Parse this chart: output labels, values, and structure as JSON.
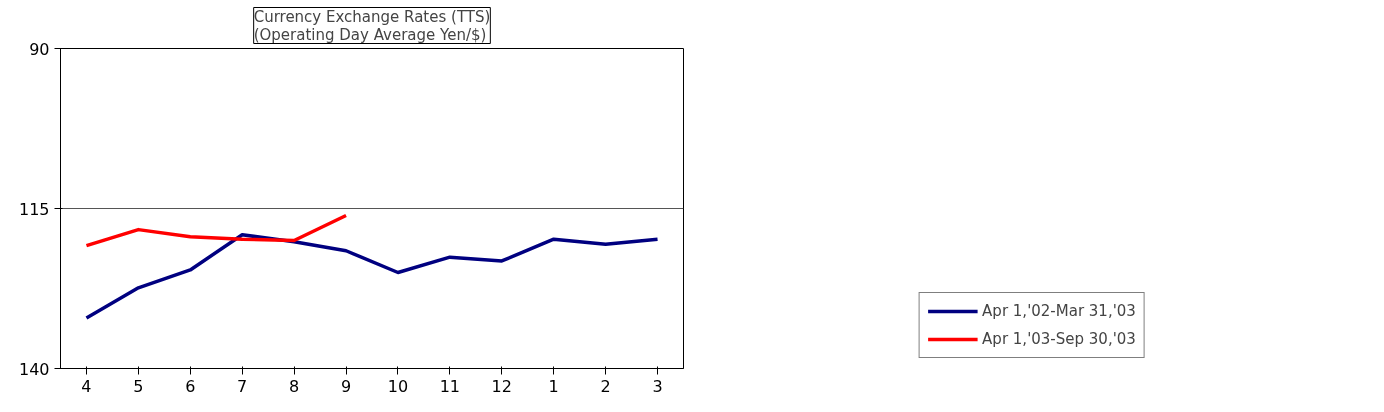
{
  "chart_data": {
    "type": "line",
    "title": "Currency Exchange Rates (TTS)\n(Operating Day Average Yen/$)",
    "categories": [
      "4",
      "5",
      "6",
      "7",
      "8",
      "9",
      "10",
      "11",
      "12",
      "1",
      "2",
      "3"
    ],
    "series": [
      {
        "name": "Apr 1,'02-Mar 31,'03",
        "color": "#000080",
        "values": [
          132.1,
          127.4,
          124.6,
          119.1,
          120.2,
          121.6,
          125.0,
          122.6,
          123.2,
          119.8,
          120.6,
          119.8
        ]
      },
      {
        "name": "Apr 1,'03-Sep 30,'03",
        "color": "#ff0000",
        "values": [
          120.8,
          118.3,
          119.4,
          119.8,
          120.0,
          116.1,
          null,
          null,
          null,
          null,
          null,
          null
        ]
      }
    ],
    "ylim": [
      140,
      90
    ],
    "yticks": [
      90,
      115,
      140
    ],
    "grid": "y",
    "legend": "bottom right",
    "marker": "none",
    "line_style": "solid"
  }
}
